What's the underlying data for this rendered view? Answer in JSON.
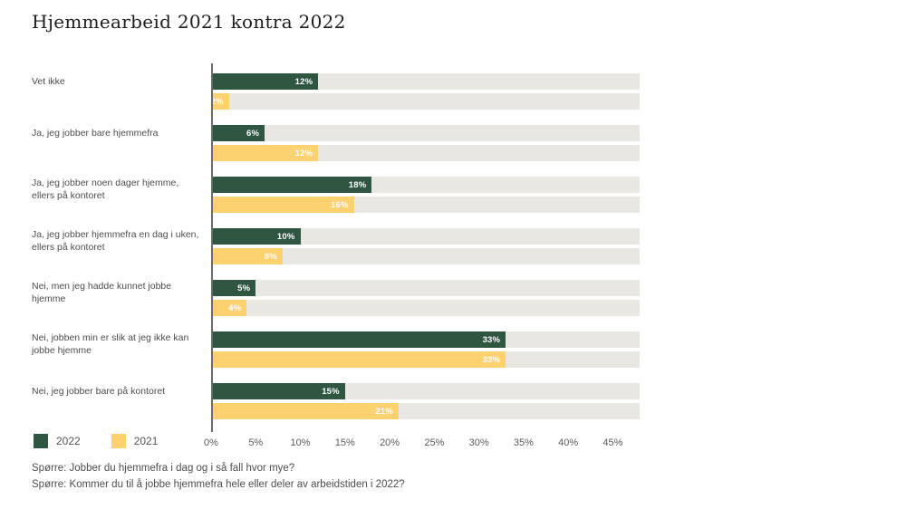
{
  "title": "Hjemmearbeid 2021 kontra 2022",
  "colors": {
    "series_2022": "#2E5641",
    "series_2021": "#FCD16F",
    "track": "#E8E7E2",
    "axis_line": "#6B6B6B",
    "bar_value_text": "#FFFFFF",
    "label_text": "#4D4D4D",
    "tick_text": "#5A5A5A",
    "title_text": "#1D1D1D"
  },
  "legend": {
    "items": [
      {
        "label": "2022",
        "color": "#2E5641"
      },
      {
        "label": "2021",
        "color": "#FCD16F"
      }
    ]
  },
  "chart_data": {
    "type": "bar",
    "orientation": "horizontal",
    "title": "Hjemmearbeid 2021 kontra 2022",
    "categories": [
      "Vet ikke",
      "Ja, jeg jobber bare hjemmefra",
      "Ja, jeg jobber noen dager hjemme, ellers på kontoret",
      "Ja, jeg jobber hjemmefra en dag i uken, ellers på kontoret",
      "Nei, men jeg hadde kunnet jobbe hjemme",
      "Nei, jobben min er slik at jeg ikke kan jobbe hjemme",
      "Nei, jeg jobber bare på kontoret"
    ],
    "series": [
      {
        "name": "2022",
        "color": "#2E5641",
        "values": [
          12,
          6,
          18,
          10,
          5,
          33,
          15
        ],
        "labels": [
          "12%",
          "6%",
          "18%",
          "10%",
          "5%",
          "33%",
          "15%"
        ]
      },
      {
        "name": "2021",
        "color": "#FCD16F",
        "values": [
          2,
          12,
          16,
          8,
          4,
          33,
          21
        ],
        "labels": [
          "2%",
          "12%",
          "16%",
          "8%",
          "4%",
          "33%",
          "21%"
        ]
      }
    ],
    "xlabel": "",
    "ylabel": "",
    "xlim": [
      0,
      48
    ],
    "ticks": {
      "values": [
        0,
        5,
        10,
        15,
        20,
        25,
        30,
        35,
        40,
        45
      ],
      "labels": [
        "0%",
        "5%",
        "10%",
        "15%",
        "20%",
        "25%",
        "30%",
        "35%",
        "40%",
        "45%"
      ]
    },
    "grid": false,
    "legend_position": "bottom-left"
  },
  "footnotes": {
    "line1": "Spørre: Jobber du hjemmefra i dag og i så fall hvor mye?",
    "line2": "Spørre: Kommer du til å jobbe hjemmefra hele eller deler av arbeidstiden i 2022?"
  }
}
